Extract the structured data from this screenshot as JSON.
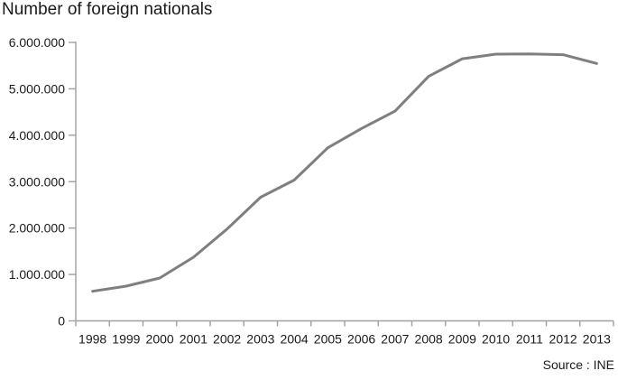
{
  "figure": {
    "title": "Number of foreign nationals",
    "source": "Source : INE"
  },
  "colors": {
    "line": "#7f7f7f",
    "axis": "#a0a0a0",
    "text": "#1a1a1a"
  },
  "chart_data": {
    "type": "line",
    "title": "Number of foreign nationals",
    "xlabel": "",
    "ylabel": "",
    "categories": [
      "1998",
      "1999",
      "2000",
      "2001",
      "2002",
      "2003",
      "2004",
      "2005",
      "2006",
      "2007",
      "2008",
      "2009",
      "2010",
      "2011",
      "2012",
      "2013"
    ],
    "values": [
      637085,
      748954,
      923879,
      1370657,
      1977946,
      2664168,
      3034326,
      3730610,
      4144166,
      4519554,
      5268762,
      5648671,
      5747734,
      5751487,
      5736258,
      5546238
    ],
    "ylim": [
      0,
      6000000
    ],
    "ytick_values": [
      0,
      1000000,
      2000000,
      3000000,
      4000000,
      5000000,
      6000000
    ],
    "ytick_labels": [
      "0",
      "1.000.000",
      "2.000.000",
      "3.000.000",
      "4.000.000",
      "5.000.000",
      "6.000.000"
    ],
    "grid": false,
    "legend_position": "none",
    "line_color": "#7f7f7f",
    "source": "Source : INE"
  }
}
